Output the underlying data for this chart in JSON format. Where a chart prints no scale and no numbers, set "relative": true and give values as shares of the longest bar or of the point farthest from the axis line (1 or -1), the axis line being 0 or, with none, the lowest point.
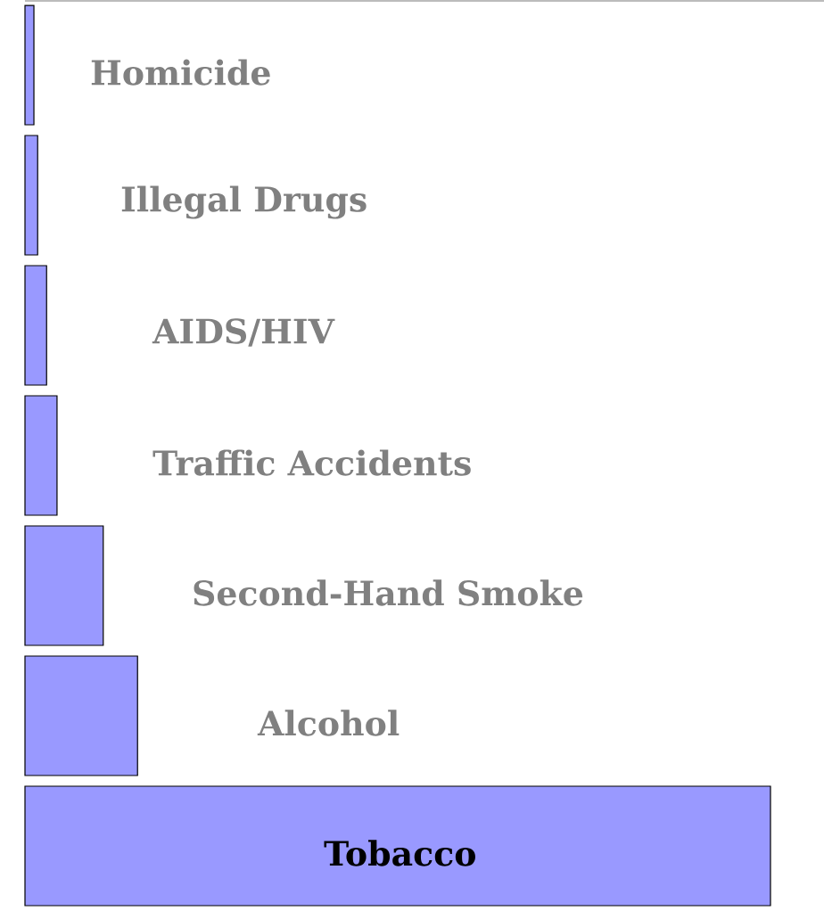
{
  "chart_data": {
    "type": "bar",
    "orientation": "horizontal",
    "relative": true,
    "color": "#9999ff",
    "categories": [
      "Homicide",
      "Illegal Drugs",
      "AIDS/HIV",
      "Traffic Accidents",
      "Second-Hand Smoke",
      "Alcohol",
      "Tobacco"
    ],
    "values": [
      0.012,
      0.017,
      0.029,
      0.043,
      0.105,
      0.151,
      1
    ]
  }
}
